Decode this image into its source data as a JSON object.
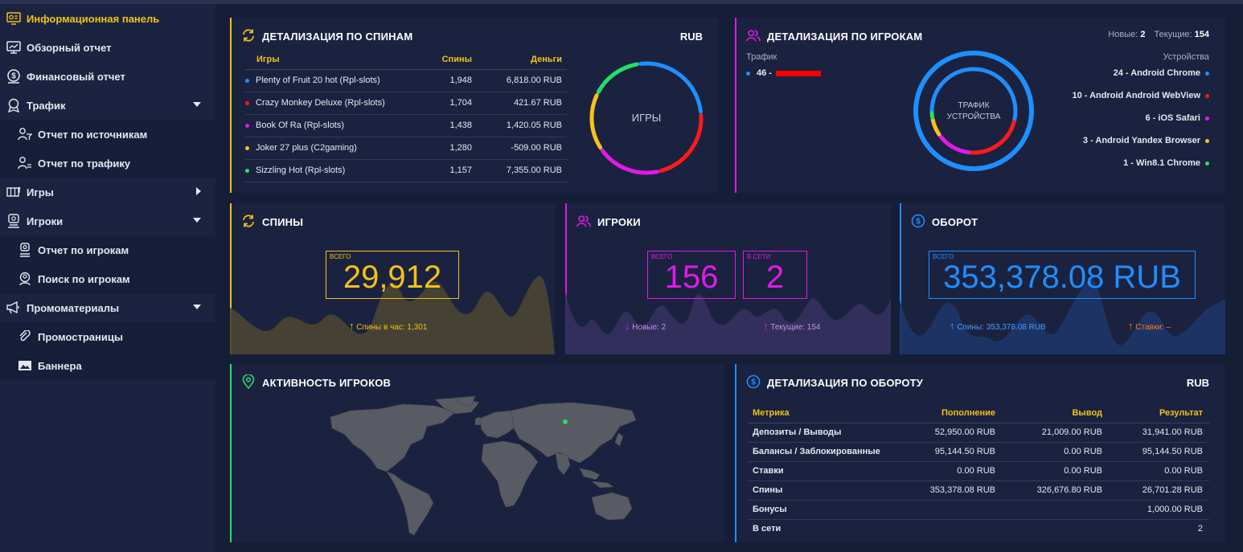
{
  "sidebar": {
    "items": [
      {
        "label": "Информационная панель"
      },
      {
        "label": "Обзорный отчет"
      },
      {
        "label": "Финансовый отчет"
      },
      {
        "label": "Трафик"
      },
      {
        "label": "Отчет по источникам"
      },
      {
        "label": "Отчет по трафику"
      },
      {
        "label": "Игры"
      },
      {
        "label": "Игроки"
      },
      {
        "label": "Отчет по игрокам"
      },
      {
        "label": "Поиск по игрокам"
      },
      {
        "label": "Промоматериалы"
      },
      {
        "label": "Промостраницы"
      },
      {
        "label": "Баннера"
      }
    ]
  },
  "spins_detail": {
    "title": "ДЕТАЛИЗАЦИЯ ПО СПИНАМ",
    "currency": "RUB",
    "headers": [
      "Игры",
      "Спины",
      "Деньги"
    ],
    "rows": [
      {
        "game": "Plenty of Fruit 20 hot (Rpl-slots)",
        "spins": "1,948",
        "money": "6,818.00 RUB",
        "color": "#1e8fff"
      },
      {
        "game": "Crazy Monkey Deluxe (Rpl-slots)",
        "spins": "1,704",
        "money": "421.67 RUB",
        "color": "#ff1a1a"
      },
      {
        "game": "Book Of Ra (Rpl-slots)",
        "spins": "1,438",
        "money": "1,420.05 RUB",
        "color": "#e11ae8"
      },
      {
        "game": "Joker 27 plus (C2gaming)",
        "spins": "1,280",
        "money": "-509.00 RUB",
        "color": "#f7c21a"
      },
      {
        "game": "Sizzling Hot (Rpl-slots)",
        "spins": "1,157",
        "money": "7,355.00 RUB",
        "color": "#22e06a"
      }
    ],
    "donut_label": "ИГРЫ"
  },
  "players_detail": {
    "title": "ДЕТАЛИЗАЦИЯ ПО ИГРОКАМ",
    "new_label": "Новые:",
    "new_value": "2",
    "current_label": "Текущие:",
    "current_value": "154",
    "traffic_label": "Трафик",
    "traffic_item": "46 - ",
    "devices_label": "Устройства",
    "donut_label_1": "ТРАФИК",
    "donut_label_2": "УСТРОЙСТВА",
    "devices": [
      {
        "label": "24 - Android Chrome",
        "color": "#1e8fff"
      },
      {
        "label": "10 - Android Android WebView",
        "color": "#ff1a1a"
      },
      {
        "label": "6 - iOS Safari",
        "color": "#e11ae8"
      },
      {
        "label": "3 - Android Yandex Browser",
        "color": "#f7c21a"
      },
      {
        "label": "1 - Win8.1 Chrome",
        "color": "#22e06a"
      }
    ]
  },
  "spins_card": {
    "title": "СПИНЫ",
    "box_label": "ВСЕГО",
    "value": "29,912",
    "footer": "Спины в час: 1,301"
  },
  "players_card": {
    "title": "ИГРОКИ",
    "box1_label": "ВСЕГО",
    "box1_value": "156",
    "box2_label": "В СЕТИ",
    "box2_value": "2",
    "footer_left": "Новые: 2",
    "footer_right": "Текущие: 154"
  },
  "turnover_card": {
    "title": "ОБОРОТ",
    "box_label": "ВСЕГО",
    "value": "353,378.08 RUB",
    "footer_left": "Спины: 353,378.08 RUB",
    "footer_right": "Ставки: –"
  },
  "activity": {
    "title": "АКТИВНОСТЬ ИГРОКОВ"
  },
  "turnover_detail": {
    "title": "ДЕТАЛИЗАЦИЯ ПО ОБОРОТУ",
    "currency": "RUB",
    "headers": [
      "Метрика",
      "Пополнение",
      "Вывод",
      "Результат"
    ],
    "rows": [
      {
        "metric": "Депозиты / Выводы",
        "deposit": "52,950.00 RUB",
        "withdraw": "21,009.00 RUB",
        "result": "31,941.00 RUB"
      },
      {
        "metric": "Балансы / Заблокированные",
        "deposit": "95,144.50 RUB",
        "withdraw": "0.00 RUB",
        "result": "95,144.50 RUB"
      },
      {
        "metric": "Ставки",
        "deposit": "0.00 RUB",
        "withdraw": "0.00 RUB",
        "result": "0.00 RUB"
      },
      {
        "metric": "Спины",
        "deposit": "353,378.08 RUB",
        "withdraw": "326,676.80 RUB",
        "result": "26,701.28 RUB"
      },
      {
        "metric": "Бонусы",
        "deposit": "",
        "withdraw": "",
        "result": "1,000.00 RUB"
      },
      {
        "metric": "В сети",
        "deposit": "",
        "withdraw": "",
        "result": "2"
      }
    ]
  },
  "colors": {
    "yellow": "#f2c215",
    "magenta": "#e11ae8",
    "blue": "#1e8fff",
    "green": "#22e06a",
    "red": "#ff1a1a",
    "orange": "#ff7a1a"
  }
}
